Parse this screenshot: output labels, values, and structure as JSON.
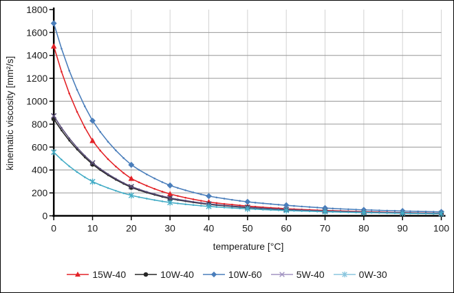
{
  "figure": {
    "background": "#ffffff",
    "border_color": "#000000"
  },
  "chart_data": {
    "type": "line",
    "title": "",
    "xlabel": "temperature [°C]",
    "ylabel": "kinematic viscosity [mm²/s]",
    "xlim": [
      0,
      100
    ],
    "ylim": [
      0,
      1800
    ],
    "x_ticks": [
      0,
      10,
      20,
      30,
      40,
      50,
      60,
      70,
      80,
      90,
      100
    ],
    "y_ticks": [
      0,
      200,
      400,
      600,
      800,
      1000,
      1200,
      1400,
      1600,
      1800
    ],
    "grid": true,
    "gridline_color_horizontal": "#969696",
    "gridline_color_vertical": "#d2d2d2",
    "axis_color": "#000000",
    "legend_position": "bottom",
    "x": [
      0,
      10,
      20,
      30,
      40,
      50,
      60,
      70,
      80,
      90,
      100
    ],
    "series": [
      {
        "name": "15W-40",
        "marker": "triangle",
        "color": "#e32227",
        "legend_color": "#e32227",
        "values": [
          1480,
          655,
          325,
          190,
          120,
          85,
          62,
          47,
          36,
          28,
          22
        ]
      },
      {
        "name": "10W-40",
        "marker": "circle",
        "color": "#262626",
        "legend_color": "#262626",
        "values": [
          845,
          450,
          248,
          150,
          100,
          72,
          53,
          40,
          31,
          25,
          20
        ]
      },
      {
        "name": "10W-60",
        "marker": "diamond",
        "color": "#4a7ebb",
        "legend_color": "#4a7ebb",
        "values": [
          1680,
          830,
          445,
          265,
          172,
          122,
          92,
          68,
          52,
          42,
          34
        ]
      },
      {
        "name": "5W-40",
        "marker": "x",
        "color": "#5a4d78",
        "legend_color": "#a294c2",
        "values": [
          872,
          462,
          255,
          156,
          104,
          75,
          55,
          42,
          33,
          26,
          21
        ]
      },
      {
        "name": "0W-30",
        "marker": "asterisk",
        "color": "#43acc6",
        "legend_color": "#8ac6de",
        "values": [
          555,
          298,
          178,
          116,
          82,
          61,
          46,
          36,
          28,
          22,
          18
        ]
      }
    ]
  }
}
